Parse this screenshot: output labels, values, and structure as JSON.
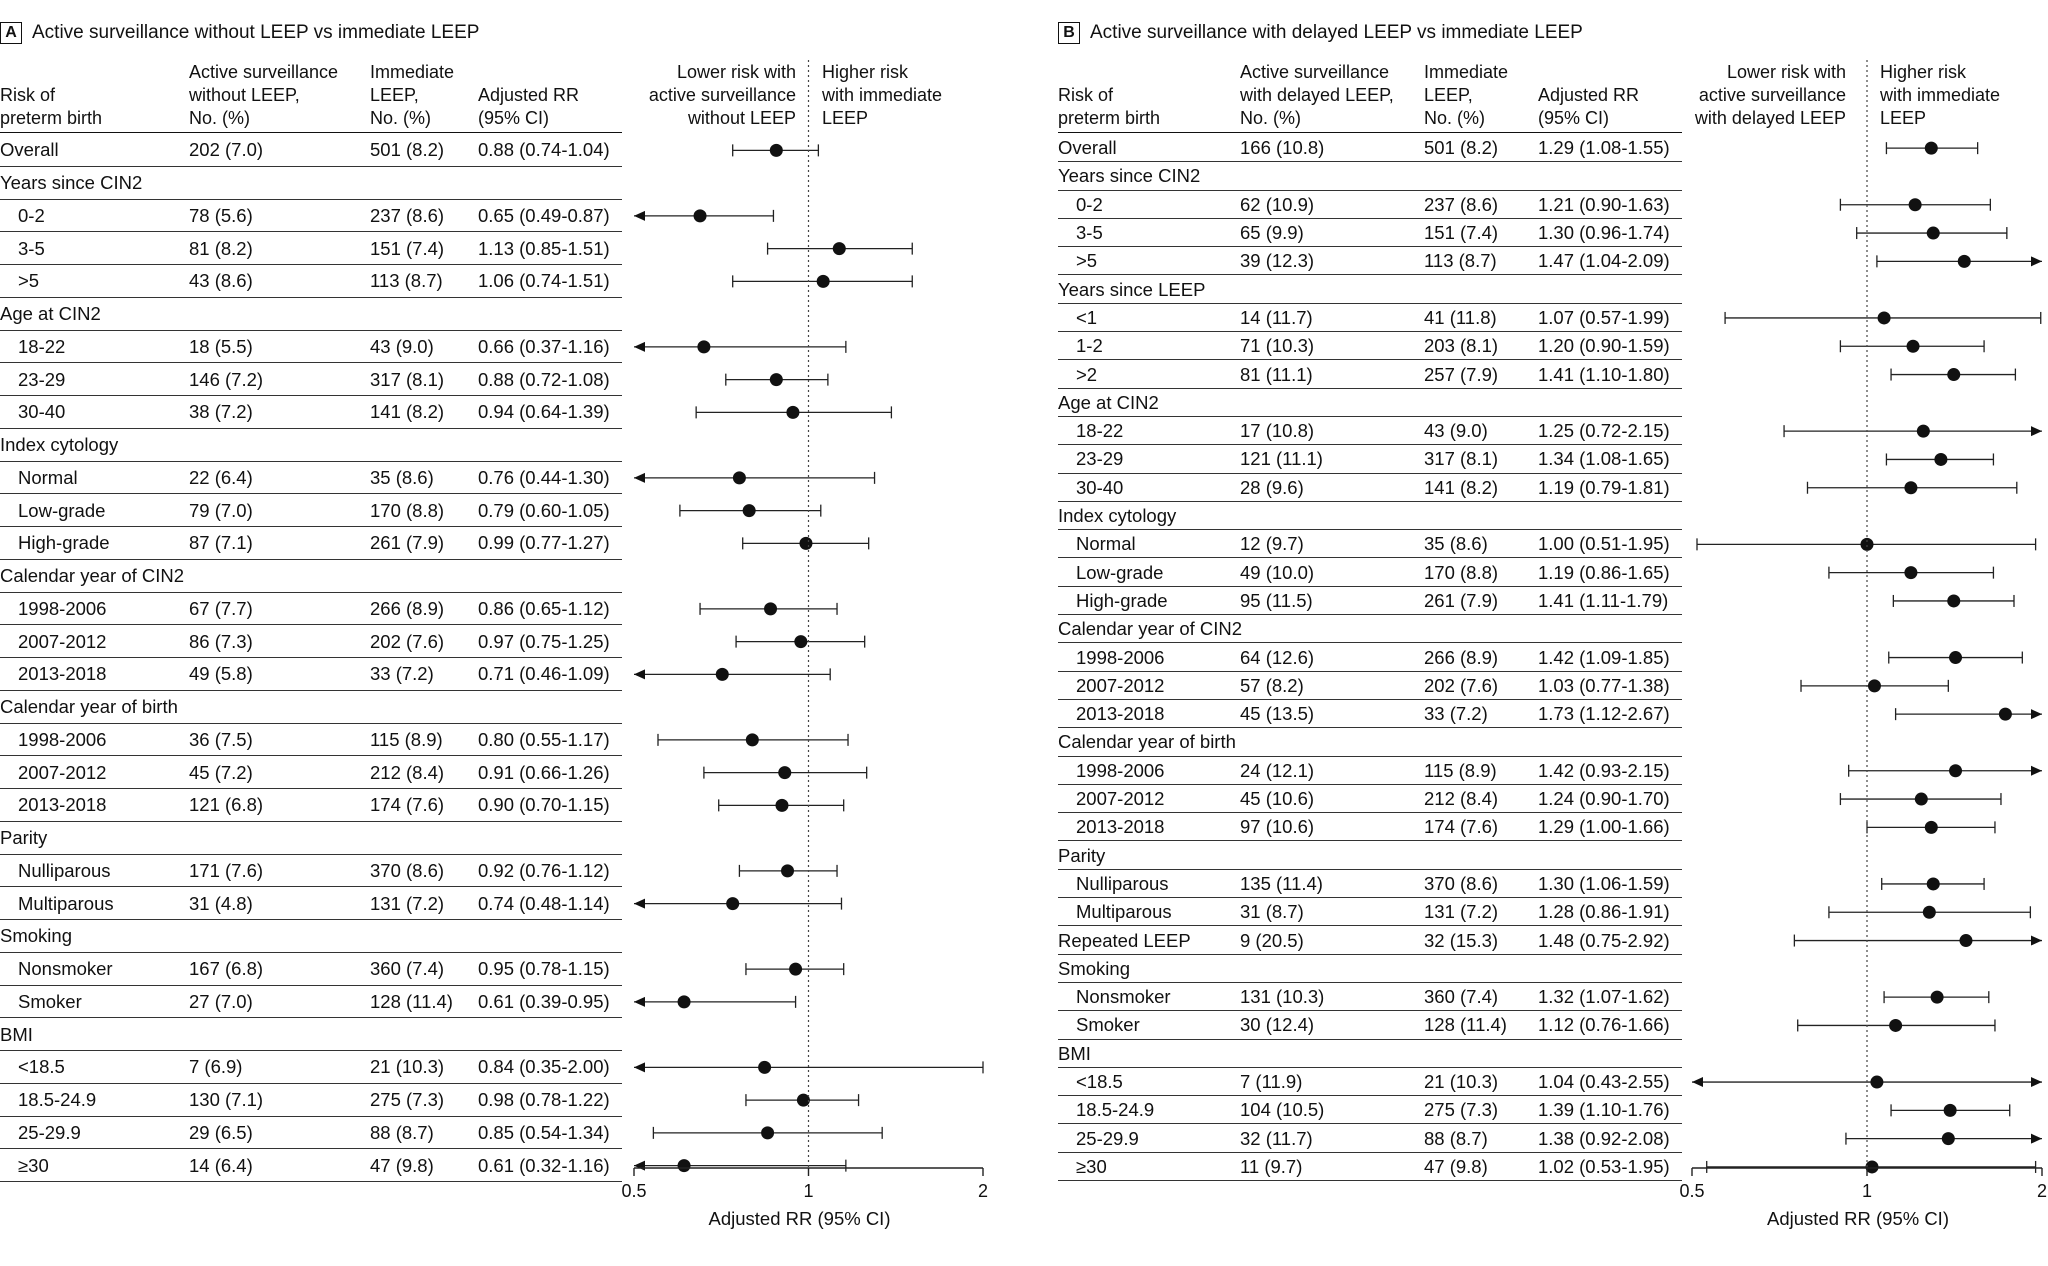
{
  "chart_data": [
    {
      "type": "forest",
      "panel": "A",
      "title": "Active surveillance without LEEP vs immediate LEEP",
      "columns": [
        "Risk of\npreterm birth",
        "Active surveillance\nwithout LEEP,\nNo. (%)",
        "Immediate\nLEEP,\nNo. (%)",
        "Adjusted RR\n(95% CI)"
      ],
      "lower_label": "Lower risk with\nactive surveillance\nwithout LEEP",
      "higher_label": "Higher risk\nwith immediate\nLEEP",
      "xlabel": "Adjusted RR (95% CI)",
      "xlim": [
        0.5,
        2
      ],
      "ticks": [
        "0.5",
        "1",
        "2"
      ],
      "rows": [
        {
          "label": "Overall",
          "indent": 0,
          "as": "202 (7.0)",
          "il": "501 (8.2)",
          "rr_text": "0.88 (0.74-1.04)",
          "rr": 0.88,
          "lo": 0.74,
          "hi": 1.04
        },
        {
          "label": "Years since CIN2",
          "group": true
        },
        {
          "label": "0-2",
          "indent": 1,
          "as": "78 (5.6)",
          "il": "237 (8.6)",
          "rr_text": "0.65 (0.49-0.87)",
          "rr": 0.65,
          "lo": 0.49,
          "hi": 0.87
        },
        {
          "label": "3-5",
          "indent": 1,
          "as": "81 (8.2)",
          "il": "151 (7.4)",
          "rr_text": "1.13 (0.85-1.51)",
          "rr": 1.13,
          "lo": 0.85,
          "hi": 1.51
        },
        {
          "label": ">5",
          "indent": 1,
          "as": "43 (8.6)",
          "il": "113 (8.7)",
          "rr_text": "1.06 (0.74-1.51)",
          "rr": 1.06,
          "lo": 0.74,
          "hi": 1.51
        },
        {
          "label": "Age at CIN2",
          "group": true
        },
        {
          "label": "18-22",
          "indent": 1,
          "as": "18 (5.5)",
          "il": "43 (9.0)",
          "rr_text": "0.66 (0.37-1.16)",
          "rr": 0.66,
          "lo": 0.37,
          "hi": 1.16
        },
        {
          "label": "23-29",
          "indent": 1,
          "as": "146 (7.2)",
          "il": "317 (8.1)",
          "rr_text": "0.88 (0.72-1.08)",
          "rr": 0.88,
          "lo": 0.72,
          "hi": 1.08
        },
        {
          "label": "30-40",
          "indent": 1,
          "as": "38 (7.2)",
          "il": "141 (8.2)",
          "rr_text": "0.94 (0.64-1.39)",
          "rr": 0.94,
          "lo": 0.64,
          "hi": 1.39
        },
        {
          "label": "Index cytology",
          "group": true
        },
        {
          "label": "Normal",
          "indent": 1,
          "as": "22 (6.4)",
          "il": "35 (8.6)",
          "rr_text": "0.76 (0.44-1.30)",
          "rr": 0.76,
          "lo": 0.44,
          "hi": 1.3
        },
        {
          "label": "Low-grade",
          "indent": 1,
          "as": "79 (7.0)",
          "il": "170 (8.8)",
          "rr_text": "0.79 (0.60-1.05)",
          "rr": 0.79,
          "lo": 0.6,
          "hi": 1.05
        },
        {
          "label": "High-grade",
          "indent": 1,
          "as": "87 (7.1)",
          "il": "261 (7.9)",
          "rr_text": "0.99 (0.77-1.27)",
          "rr": 0.99,
          "lo": 0.77,
          "hi": 1.27
        },
        {
          "label": "Calendar year of CIN2",
          "group": true
        },
        {
          "label": "1998-2006",
          "indent": 1,
          "as": "67 (7.7)",
          "il": "266 (8.9)",
          "rr_text": "0.86 (0.65-1.12)",
          "rr": 0.86,
          "lo": 0.65,
          "hi": 1.12
        },
        {
          "label": "2007-2012",
          "indent": 1,
          "as": "86 (7.3)",
          "il": "202 (7.6)",
          "rr_text": "0.97 (0.75-1.25)",
          "rr": 0.97,
          "lo": 0.75,
          "hi": 1.25
        },
        {
          "label": "2013-2018",
          "indent": 1,
          "as": "49 (5.8)",
          "il": "33 (7.2)",
          "rr_text": "0.71 (0.46-1.09)",
          "rr": 0.71,
          "lo": 0.46,
          "hi": 1.09
        },
        {
          "label": "Calendar year of birth",
          "group": true
        },
        {
          "label": "1998-2006",
          "indent": 1,
          "as": "36 (7.5)",
          "il": "115 (8.9)",
          "rr_text": "0.80 (0.55-1.17)",
          "rr": 0.8,
          "lo": 0.55,
          "hi": 1.17
        },
        {
          "label": "2007-2012",
          "indent": 1,
          "as": "45 (7.2)",
          "il": "212 (8.4)",
          "rr_text": "0.91 (0.66-1.26)",
          "rr": 0.91,
          "lo": 0.66,
          "hi": 1.26
        },
        {
          "label": "2013-2018",
          "indent": 1,
          "as": "121 (6.8)",
          "il": "174 (7.6)",
          "rr_text": "0.90 (0.70-1.15)",
          "rr": 0.9,
          "lo": 0.7,
          "hi": 1.15
        },
        {
          "label": "Parity",
          "group": true
        },
        {
          "label": "Nulliparous",
          "indent": 1,
          "as": "171 (7.6)",
          "il": "370 (8.6)",
          "rr_text": "0.92 (0.76-1.12)",
          "rr": 0.92,
          "lo": 0.76,
          "hi": 1.12
        },
        {
          "label": "Multiparous",
          "indent": 1,
          "as": "31 (4.8)",
          "il": "131 (7.2)",
          "rr_text": "0.74 (0.48-1.14)",
          "rr": 0.74,
          "lo": 0.48,
          "hi": 1.14
        },
        {
          "label": "Smoking",
          "group": true
        },
        {
          "label": "Nonsmoker",
          "indent": 1,
          "as": "167 (6.8)",
          "il": "360 (7.4)",
          "rr_text": "0.95 (0.78-1.15)",
          "rr": 0.95,
          "lo": 0.78,
          "hi": 1.15
        },
        {
          "label": "Smoker",
          "indent": 1,
          "as": "27 (7.0)",
          "il": "128 (11.4)",
          "rr_text": "0.61 (0.39-0.95)",
          "rr": 0.61,
          "lo": 0.39,
          "hi": 0.95
        },
        {
          "label": "BMI",
          "group": true
        },
        {
          "label": "<18.5",
          "indent": 1,
          "as": "7 (6.9)",
          "il": "21 (10.3)",
          "rr_text": "0.84 (0.35-2.00)",
          "rr": 0.84,
          "lo": 0.35,
          "hi": 2.0
        },
        {
          "label": "18.5-24.9",
          "indent": 1,
          "as": "130 (7.1)",
          "il": "275 (7.3)",
          "rr_text": "0.98 (0.78-1.22)",
          "rr": 0.98,
          "lo": 0.78,
          "hi": 1.22
        },
        {
          "label": "25-29.9",
          "indent": 1,
          "as": "29 (6.5)",
          "il": "88 (8.7)",
          "rr_text": "0.85 (0.54-1.34)",
          "rr": 0.85,
          "lo": 0.54,
          "hi": 1.34
        },
        {
          "label": "≥30",
          "indent": 1,
          "as": "14 (6.4)",
          "il": "47 (9.8)",
          "rr_text": "0.61 (0.32-1.16)",
          "rr": 0.61,
          "lo": 0.32,
          "hi": 1.16
        }
      ]
    },
    {
      "type": "forest",
      "panel": "B",
      "title": "Active surveillance with delayed LEEP vs immediate LEEP",
      "columns": [
        "Risk of\npreterm birth",
        "Active surveillance\nwith delayed LEEP,\nNo. (%)",
        "Immediate\nLEEP,\nNo. (%)",
        "Adjusted RR\n(95% CI)"
      ],
      "lower_label": "Lower risk with\nactive surveillance\nwith delayed LEEP",
      "higher_label": "Higher risk\nwith immediate\nLEEP",
      "xlabel": "Adjusted RR (95% CI)",
      "xlim": [
        0.5,
        2
      ],
      "ticks": [
        "0.5",
        "1",
        "2"
      ],
      "rows": [
        {
          "label": "Overall",
          "indent": 0,
          "as": "166 (10.8)",
          "il": "501 (8.2)",
          "rr_text": "1.29 (1.08-1.55)",
          "rr": 1.29,
          "lo": 1.08,
          "hi": 1.55
        },
        {
          "label": "Years since CIN2",
          "group": true
        },
        {
          "label": "0-2",
          "indent": 1,
          "as": "62 (10.9)",
          "il": "237 (8.6)",
          "rr_text": "1.21 (0.90-1.63)",
          "rr": 1.21,
          "lo": 0.9,
          "hi": 1.63
        },
        {
          "label": "3-5",
          "indent": 1,
          "as": "65 (9.9)",
          "il": "151 (7.4)",
          "rr_text": "1.30 (0.96-1.74)",
          "rr": 1.3,
          "lo": 0.96,
          "hi": 1.74
        },
        {
          "label": ">5",
          "indent": 1,
          "as": "39 (12.3)",
          "il": "113 (8.7)",
          "rr_text": "1.47 (1.04-2.09)",
          "rr": 1.47,
          "lo": 1.04,
          "hi": 2.09
        },
        {
          "label": "Years since LEEP",
          "group": true
        },
        {
          "label": "<1",
          "indent": 1,
          "as": "14 (11.7)",
          "il": "41 (11.8)",
          "rr_text": "1.07 (0.57-1.99)",
          "rr": 1.07,
          "lo": 0.57,
          "hi": 1.99
        },
        {
          "label": "1-2",
          "indent": 1,
          "as": "71 (10.3)",
          "il": "203 (8.1)",
          "rr_text": "1.20 (0.90-1.59)",
          "rr": 1.2,
          "lo": 0.9,
          "hi": 1.59
        },
        {
          "label": ">2",
          "indent": 1,
          "as": "81 (11.1)",
          "il": "257 (7.9)",
          "rr_text": "1.41 (1.10-1.80)",
          "rr": 1.41,
          "lo": 1.1,
          "hi": 1.8
        },
        {
          "label": "Age at CIN2",
          "group": true
        },
        {
          "label": "18-22",
          "indent": 1,
          "as": "17 (10.8)",
          "il": "43 (9.0)",
          "rr_text": "1.25 (0.72-2.15)",
          "rr": 1.25,
          "lo": 0.72,
          "hi": 2.15
        },
        {
          "label": "23-29",
          "indent": 1,
          "as": "121 (11.1)",
          "il": "317 (8.1)",
          "rr_text": "1.34 (1.08-1.65)",
          "rr": 1.34,
          "lo": 1.08,
          "hi": 1.65
        },
        {
          "label": "30-40",
          "indent": 1,
          "as": "28 (9.6)",
          "il": "141 (8.2)",
          "rr_text": "1.19 (0.79-1.81)",
          "rr": 1.19,
          "lo": 0.79,
          "hi": 1.81
        },
        {
          "label": "Index cytology",
          "group": true
        },
        {
          "label": "Normal",
          "indent": 1,
          "as": "12 (9.7)",
          "il": "35 (8.6)",
          "rr_text": "1.00 (0.51-1.95)",
          "rr": 1.0,
          "lo": 0.51,
          "hi": 1.95
        },
        {
          "label": "Low-grade",
          "indent": 1,
          "as": "49 (10.0)",
          "il": "170 (8.8)",
          "rr_text": "1.19 (0.86-1.65)",
          "rr": 1.19,
          "lo": 0.86,
          "hi": 1.65
        },
        {
          "label": "High-grade",
          "indent": 1,
          "as": "95 (11.5)",
          "il": "261 (7.9)",
          "rr_text": "1.41 (1.11-1.79)",
          "rr": 1.41,
          "lo": 1.11,
          "hi": 1.79
        },
        {
          "label": "Calendar year of CIN2",
          "group": true
        },
        {
          "label": "1998-2006",
          "indent": 1,
          "as": "64 (12.6)",
          "il": "266 (8.9)",
          "rr_text": "1.42 (1.09-1.85)",
          "rr": 1.42,
          "lo": 1.09,
          "hi": 1.85
        },
        {
          "label": "2007-2012",
          "indent": 1,
          "as": "57 (8.2)",
          "il": "202 (7.6)",
          "rr_text": "1.03 (0.77-1.38)",
          "rr": 1.03,
          "lo": 0.77,
          "hi": 1.38
        },
        {
          "label": "2013-2018",
          "indent": 1,
          "as": "45 (13.5)",
          "il": "33 (7.2)",
          "rr_text": "1.73 (1.12-2.67)",
          "rr": 1.73,
          "lo": 1.12,
          "hi": 2.67
        },
        {
          "label": "Calendar year of birth",
          "group": true
        },
        {
          "label": "1998-2006",
          "indent": 1,
          "as": "24 (12.1)",
          "il": "115 (8.9)",
          "rr_text": "1.42 (0.93-2.15)",
          "rr": 1.42,
          "lo": 0.93,
          "hi": 2.15
        },
        {
          "label": "2007-2012",
          "indent": 1,
          "as": "45 (10.6)",
          "il": "212 (8.4)",
          "rr_text": "1.24 (0.90-1.70)",
          "rr": 1.24,
          "lo": 0.9,
          "hi": 1.7
        },
        {
          "label": "2013-2018",
          "indent": 1,
          "as": "97 (10.6)",
          "il": "174 (7.6)",
          "rr_text": "1.29 (1.00-1.66)",
          "rr": 1.29,
          "lo": 1.0,
          "hi": 1.66
        },
        {
          "label": "Parity",
          "group": true
        },
        {
          "label": "Nulliparous",
          "indent": 1,
          "as": "135 (11.4)",
          "il": "370 (8.6)",
          "rr_text": "1.30 (1.06-1.59)",
          "rr": 1.3,
          "lo": 1.06,
          "hi": 1.59
        },
        {
          "label": "Multiparous",
          "indent": 1,
          "as": "31 (8.7)",
          "il": "131 (7.2)",
          "rr_text": "1.28 (0.86-1.91)",
          "rr": 1.28,
          "lo": 0.86,
          "hi": 1.91
        },
        {
          "label": "Repeated LEEP",
          "indent": 0,
          "as": "9 (20.5)",
          "il": "32 (15.3)",
          "rr_text": "1.48 (0.75-2.92)",
          "rr": 1.48,
          "lo": 0.75,
          "hi": 2.92
        },
        {
          "label": "Smoking",
          "group": true
        },
        {
          "label": "Nonsmoker",
          "indent": 1,
          "as": "131 (10.3)",
          "il": "360 (7.4)",
          "rr_text": "1.32 (1.07-1.62)",
          "rr": 1.32,
          "lo": 1.07,
          "hi": 1.62
        },
        {
          "label": "Smoker",
          "indent": 1,
          "as": "30 (12.4)",
          "il": "128 (11.4)",
          "rr_text": "1.12 (0.76-1.66)",
          "rr": 1.12,
          "lo": 0.76,
          "hi": 1.66
        },
        {
          "label": "BMI",
          "group": true
        },
        {
          "label": "<18.5",
          "indent": 1,
          "as": "7 (11.9)",
          "il": "21 (10.3)",
          "rr_text": "1.04 (0.43-2.55)",
          "rr": 1.04,
          "lo": 0.43,
          "hi": 2.55
        },
        {
          "label": "18.5-24.9",
          "indent": 1,
          "as": "104 (10.5)",
          "il": "275 (7.3)",
          "rr_text": "1.39 (1.10-1.76)",
          "rr": 1.39,
          "lo": 1.1,
          "hi": 1.76
        },
        {
          "label": "25-29.9",
          "indent": 1,
          "as": "32 (11.7)",
          "il": "88 (8.7)",
          "rr_text": "1.38 (0.92-2.08)",
          "rr": 1.38,
          "lo": 0.92,
          "hi": 2.08
        },
        {
          "label": "≥30",
          "indent": 1,
          "as": "11 (9.7)",
          "il": "47 (9.8)",
          "rr_text": "1.02 (0.53-1.95)",
          "rr": 1.02,
          "lo": 0.53,
          "hi": 1.95
        }
      ]
    }
  ]
}
